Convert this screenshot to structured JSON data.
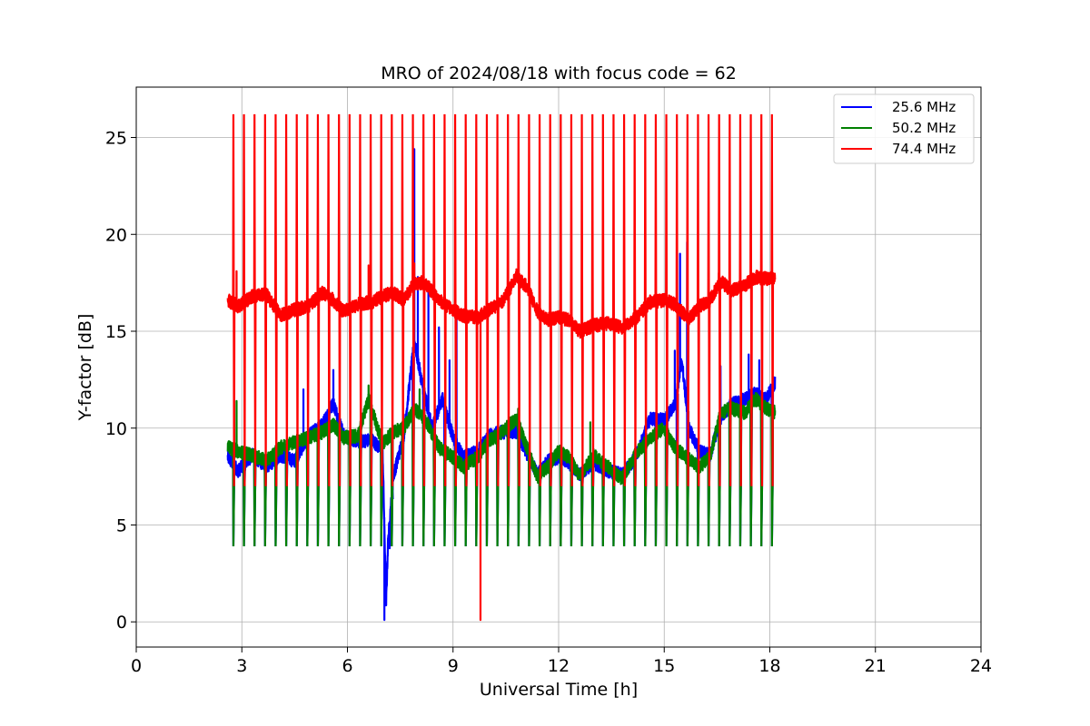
{
  "chart_data": {
    "type": "line",
    "title": "MRO of 2024/08/18 with focus code = 62",
    "xlabel": "Universal Time [h]",
    "ylabel": "Y-factor [dB]",
    "xlim": [
      0,
      24
    ],
    "ylim": [
      -1.3,
      27.6
    ],
    "xticks": [
      0,
      3,
      6,
      9,
      12,
      15,
      18,
      21,
      24
    ],
    "yticks": [
      0,
      5,
      10,
      15,
      20,
      25
    ],
    "grid": true,
    "legend_position": "top-right",
    "calibration": {
      "start_h": 2.75,
      "end_h": 18.05,
      "period_h": 0.3,
      "high_db": 26.2,
      "low_db": 3.9,
      "mid_db": 7.0
    },
    "series": [
      {
        "name": "25.6 MHz",
        "color": "#0000ff",
        "baseline": [
          [
            2.6,
            8.5
          ],
          [
            2.9,
            7.8
          ],
          [
            3.3,
            8.6
          ],
          [
            3.7,
            8.0
          ],
          [
            4.1,
            8.6
          ],
          [
            4.5,
            8.3
          ],
          [
            4.9,
            9.6
          ],
          [
            5.3,
            10.2
          ],
          [
            5.6,
            11.3
          ],
          [
            5.9,
            9.6
          ],
          [
            6.3,
            9.3
          ],
          [
            6.7,
            9.4
          ],
          [
            7.0,
            8.8
          ],
          [
            7.1,
            1.0
          ],
          [
            7.15,
            4.0
          ],
          [
            7.3,
            7.5
          ],
          [
            7.6,
            9.6
          ],
          [
            7.9,
            14.5
          ],
          [
            8.1,
            12.5
          ],
          [
            8.4,
            10.0
          ],
          [
            8.7,
            11.5
          ],
          [
            9.0,
            9.5
          ],
          [
            9.3,
            8.5
          ],
          [
            9.7,
            8.8
          ],
          [
            10.0,
            9.6
          ],
          [
            10.4,
            9.8
          ],
          [
            10.8,
            9.8
          ],
          [
            11.1,
            8.7
          ],
          [
            11.4,
            7.6
          ],
          [
            11.7,
            8.3
          ],
          [
            12.0,
            8.5
          ],
          [
            12.3,
            8.2
          ],
          [
            12.6,
            7.6
          ],
          [
            13.0,
            8.2
          ],
          [
            13.4,
            7.8
          ],
          [
            13.8,
            7.6
          ],
          [
            14.2,
            8.5
          ],
          [
            14.6,
            10.5
          ],
          [
            15.0,
            10.4
          ],
          [
            15.3,
            11.2
          ],
          [
            15.5,
            13.5
          ],
          [
            15.7,
            10.0
          ],
          [
            16.0,
            8.8
          ],
          [
            16.3,
            8.6
          ],
          [
            16.6,
            10.5
          ],
          [
            16.9,
            11.2
          ],
          [
            17.3,
            11.5
          ],
          [
            17.6,
            11.8
          ],
          [
            17.9,
            11.5
          ],
          [
            18.15,
            12.4
          ]
        ],
        "spikes": [
          [
            4.75,
            12.0
          ],
          [
            5.6,
            13.0
          ],
          [
            7.05,
            0.1
          ],
          [
            7.2,
            3.8
          ],
          [
            7.9,
            24.4
          ],
          [
            8.0,
            17.8
          ],
          [
            8.3,
            17.2
          ],
          [
            8.6,
            15.2
          ],
          [
            8.9,
            13.5
          ],
          [
            9.1,
            15.8
          ],
          [
            15.3,
            14.0
          ],
          [
            15.45,
            19.0
          ],
          [
            15.65,
            19.6
          ],
          [
            16.6,
            13.2
          ],
          [
            17.4,
            13.8
          ],
          [
            17.7,
            13.5
          ]
        ]
      },
      {
        "name": "50.2 MHz",
        "color": "#008000",
        "baseline": [
          [
            2.6,
            9.0
          ],
          [
            2.9,
            8.8
          ],
          [
            3.3,
            8.6
          ],
          [
            3.7,
            8.3
          ],
          [
            4.1,
            9.0
          ],
          [
            4.5,
            9.3
          ],
          [
            4.9,
            9.5
          ],
          [
            5.3,
            9.8
          ],
          [
            5.6,
            10.2
          ],
          [
            5.9,
            9.5
          ],
          [
            6.3,
            9.6
          ],
          [
            6.6,
            11.5
          ],
          [
            7.0,
            9.2
          ],
          [
            7.3,
            9.8
          ],
          [
            7.6,
            10.0
          ],
          [
            7.9,
            11.0
          ],
          [
            8.2,
            10.5
          ],
          [
            8.6,
            9.0
          ],
          [
            9.0,
            8.5
          ],
          [
            9.3,
            8.0
          ],
          [
            9.7,
            8.5
          ],
          [
            10.0,
            9.3
          ],
          [
            10.4,
            9.8
          ],
          [
            10.8,
            10.5
          ],
          [
            11.1,
            9.0
          ],
          [
            11.4,
            7.5
          ],
          [
            11.7,
            8.0
          ],
          [
            12.0,
            8.8
          ],
          [
            12.3,
            8.5
          ],
          [
            12.6,
            7.5
          ],
          [
            13.0,
            8.6
          ],
          [
            13.4,
            8.0
          ],
          [
            13.8,
            7.4
          ],
          [
            14.2,
            8.7
          ],
          [
            14.6,
            9.5
          ],
          [
            15.0,
            10.0
          ],
          [
            15.3,
            9.0
          ],
          [
            15.7,
            8.4
          ],
          [
            16.0,
            8.0
          ],
          [
            16.3,
            8.5
          ],
          [
            16.6,
            10.8
          ],
          [
            16.9,
            11.0
          ],
          [
            17.3,
            10.8
          ],
          [
            17.6,
            11.5
          ],
          [
            17.9,
            11.0
          ],
          [
            18.15,
            10.8
          ]
        ],
        "spikes": [
          [
            2.85,
            11.4
          ],
          [
            6.6,
            12.2
          ],
          [
            8.05,
            12.0
          ],
          [
            10.85,
            11.0
          ],
          [
            12.9,
            10.3
          ]
        ]
      },
      {
        "name": "74.4 MHz",
        "color": "#ff0000",
        "baseline": [
          [
            2.6,
            16.6
          ],
          [
            2.9,
            16.3
          ],
          [
            3.3,
            16.8
          ],
          [
            3.7,
            16.9
          ],
          [
            4.1,
            15.8
          ],
          [
            4.5,
            16.1
          ],
          [
            4.9,
            16.3
          ],
          [
            5.3,
            17.0
          ],
          [
            5.6,
            16.6
          ],
          [
            5.9,
            16.0
          ],
          [
            6.3,
            16.4
          ],
          [
            6.7,
            16.5
          ],
          [
            7.0,
            16.8
          ],
          [
            7.3,
            17.0
          ],
          [
            7.6,
            16.6
          ],
          [
            7.9,
            17.5
          ],
          [
            8.2,
            17.5
          ],
          [
            8.6,
            16.6
          ],
          [
            9.0,
            16.1
          ],
          [
            9.3,
            15.8
          ],
          [
            9.7,
            15.7
          ],
          [
            10.0,
            16.1
          ],
          [
            10.4,
            16.5
          ],
          [
            10.8,
            17.8
          ],
          [
            11.1,
            17.3
          ],
          [
            11.4,
            16.0
          ],
          [
            11.7,
            15.6
          ],
          [
            12.0,
            15.7
          ],
          [
            12.3,
            15.6
          ],
          [
            12.6,
            15.0
          ],
          [
            13.0,
            15.3
          ],
          [
            13.4,
            15.4
          ],
          [
            13.8,
            15.2
          ],
          [
            14.2,
            15.7
          ],
          [
            14.6,
            16.5
          ],
          [
            15.0,
            16.6
          ],
          [
            15.3,
            16.4
          ],
          [
            15.7,
            15.6
          ],
          [
            16.0,
            16.3
          ],
          [
            16.3,
            16.6
          ],
          [
            16.6,
            17.6
          ],
          [
            16.9,
            17.1
          ],
          [
            17.3,
            17.4
          ],
          [
            17.6,
            17.8
          ],
          [
            17.9,
            17.7
          ],
          [
            18.15,
            17.8
          ]
        ],
        "spikes": [
          [
            2.85,
            18.1
          ],
          [
            6.6,
            18.4
          ],
          [
            7.9,
            18.5
          ],
          [
            9.78,
            0.1
          ],
          [
            10.8,
            18.2
          ],
          [
            16.55,
            18.0
          ]
        ]
      }
    ]
  }
}
